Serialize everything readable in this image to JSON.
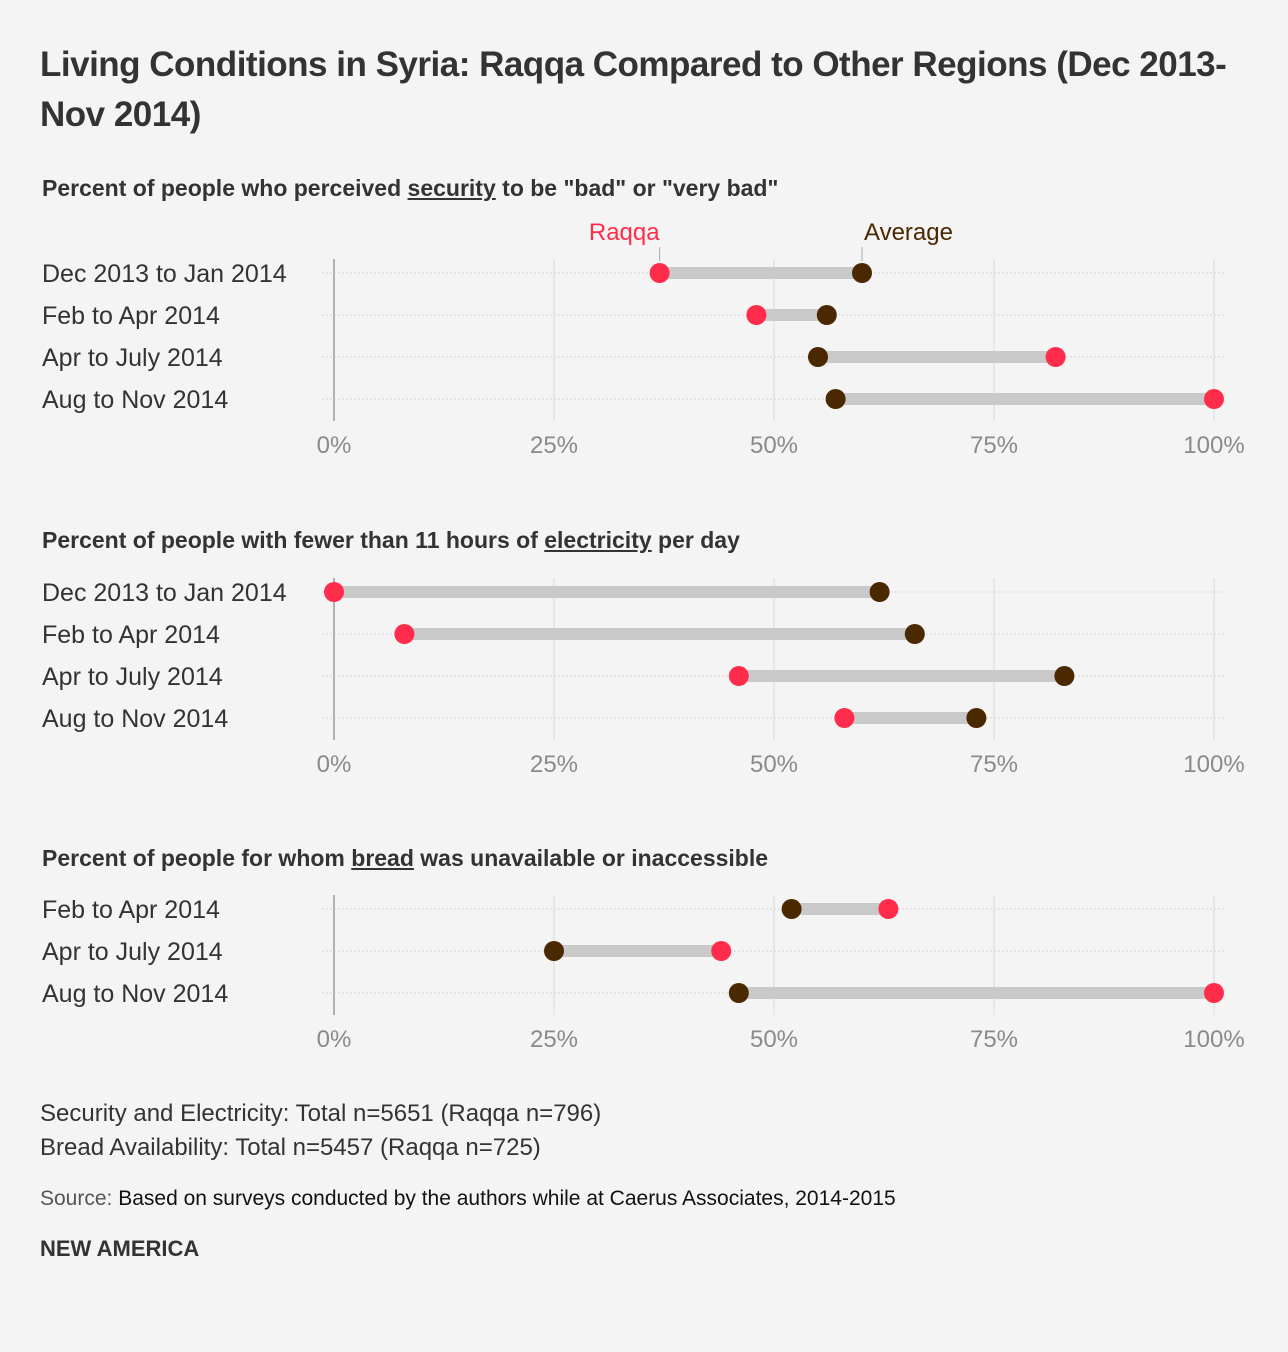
{
  "title": "Living Conditions in Syria: Raqqa Compared to Other Regions (Dec 2013-Nov 2014)",
  "colors": {
    "raqqa": "#ff2d4b",
    "average": "#4a2800",
    "bar": "#c9c9c9"
  },
  "legend": {
    "raqqa": "Raqqa",
    "average": "Average"
  },
  "chart_data": [
    {
      "type": "dumbbell",
      "title_pre": "Percent of people who perceived ",
      "title_key": "security",
      "title_post": " to be \"bad\" or \"very bad\"",
      "categories": [
        "Dec 2013 to Jan 2014",
        "Feb to Apr 2014",
        "Apr to July 2014",
        "Aug to Nov 2014"
      ],
      "series": [
        {
          "name": "Raqqa",
          "values": [
            37,
            48,
            82,
            100
          ]
        },
        {
          "name": "Average",
          "values": [
            60,
            56,
            55,
            57
          ]
        }
      ],
      "xlim": [
        0,
        100
      ],
      "xticks": [
        "0%",
        "25%",
        "50%",
        "75%",
        "100%"
      ]
    },
    {
      "type": "dumbbell",
      "title_pre": "Percent of people with fewer than 11 hours of ",
      "title_key": "electricity",
      "title_post": " per day",
      "categories": [
        "Dec 2013 to Jan 2014",
        "Feb to Apr 2014",
        "Apr to July 2014",
        "Aug to Nov 2014"
      ],
      "series": [
        {
          "name": "Raqqa",
          "values": [
            0,
            8,
            46,
            58
          ]
        },
        {
          "name": "Average",
          "values": [
            62,
            66,
            83,
            73
          ]
        }
      ],
      "xlim": [
        0,
        100
      ],
      "xticks": [
        "0%",
        "25%",
        "50%",
        "75%",
        "100%"
      ]
    },
    {
      "type": "dumbbell",
      "title_pre": "Percent of people for whom ",
      "title_key": "bread",
      "title_post": " was unavailable or inaccessible",
      "categories": [
        "Feb to Apr 2014",
        "Apr to July 2014",
        "Aug to Nov 2014"
      ],
      "series": [
        {
          "name": "Raqqa",
          "values": [
            63,
            44,
            100
          ]
        },
        {
          "name": "Average",
          "values": [
            52,
            25,
            46
          ]
        }
      ],
      "xlim": [
        0,
        100
      ],
      "xticks": [
        "0%",
        "25%",
        "50%",
        "75%",
        "100%"
      ]
    }
  ],
  "notes": [
    "Security and Electricity: Total n=5651 (Raqqa n=796)",
    "Bread Availability: Total n=5457 (Raqqa n=725)"
  ],
  "source_label": "Source:",
  "source_text": " Based on surveys conducted by the authors while at Caerus Associates, 2014-2015",
  "brand": "NEW AMERICA"
}
